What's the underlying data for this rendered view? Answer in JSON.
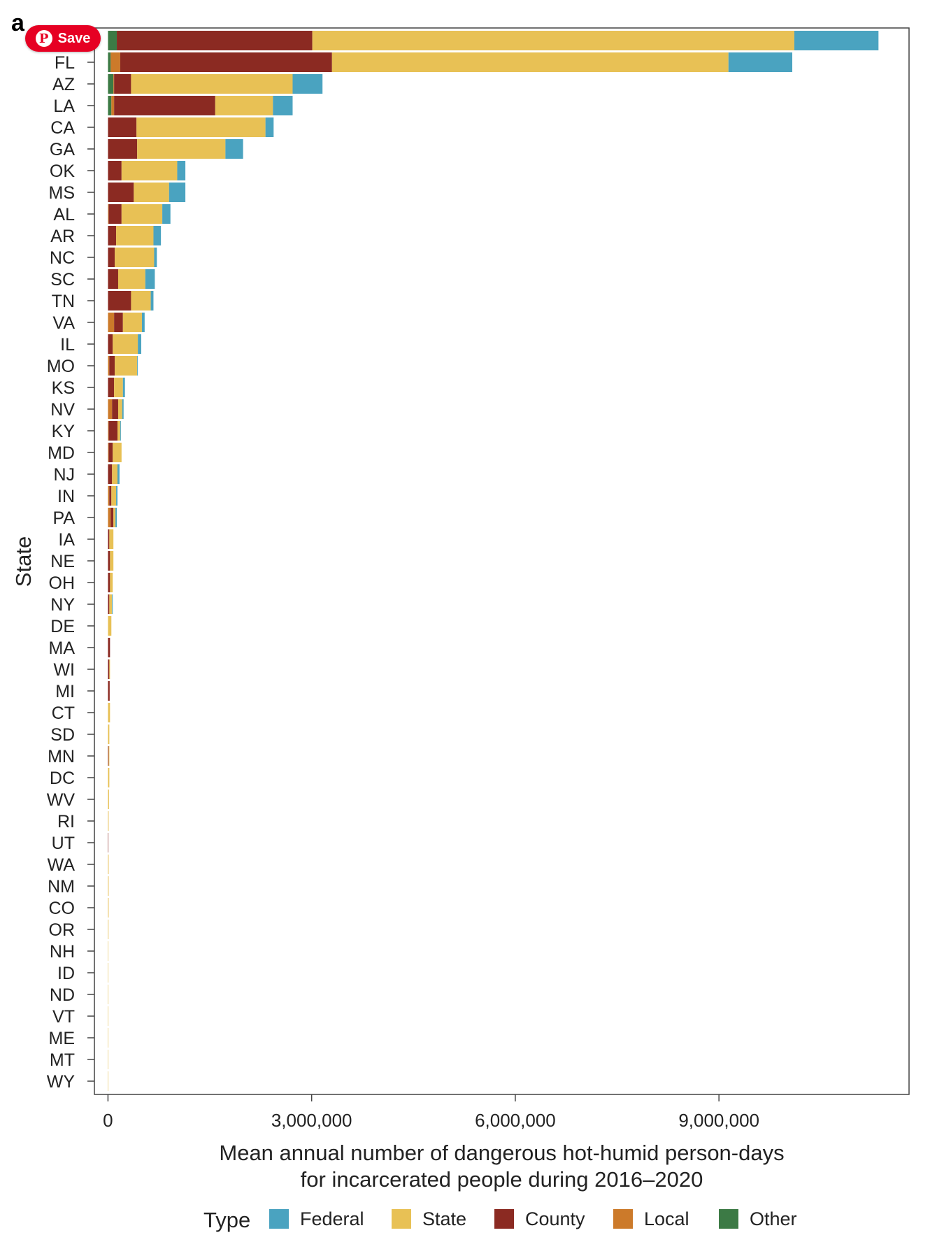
{
  "overlay": {
    "panel_letter": "a",
    "save_button_label": "Save",
    "pin_icon": "pinterest-icon"
  },
  "legend": {
    "title": "Type",
    "items": [
      {
        "label": "Federal",
        "color": "#4aa3c0"
      },
      {
        "label": "State",
        "color": "#e8c155"
      },
      {
        "label": "County",
        "color": "#8b2a22"
      },
      {
        "label": "Local",
        "color": "#cc7a2a"
      },
      {
        "label": "Other",
        "color": "#3c7a45"
      }
    ]
  },
  "chart_data": {
    "type": "bar",
    "orientation": "horizontal",
    "stacked": true,
    "ylabel": "State",
    "xlabel_lines": [
      "Mean annual number of dangerous hot-humid person-days",
      "for incarcerated people during 2016–2020"
    ],
    "xlim": [
      -200000,
      11800000
    ],
    "xticks": [
      0,
      3000000,
      6000000,
      9000000
    ],
    "xtick_labels": [
      "0",
      "3,000,000",
      "6,000,000",
      "9,000,000"
    ],
    "grid": false,
    "legend_position": "bottom",
    "stack_order": [
      "Other",
      "Local",
      "County",
      "State",
      "Federal"
    ],
    "categories": [
      "",
      "FL",
      "AZ",
      "LA",
      "CA",
      "GA",
      "OK",
      "MS",
      "AL",
      "AR",
      "NC",
      "SC",
      "TN",
      "VA",
      "IL",
      "MO",
      "KS",
      "NV",
      "KY",
      "MD",
      "NJ",
      "IN",
      "PA",
      "IA",
      "NE",
      "OH",
      "NY",
      "DE",
      "MA",
      "WI",
      "MI",
      "CT",
      "SD",
      "MN",
      "DC",
      "WV",
      "RI",
      "UT",
      "WA",
      "NM",
      "CO",
      "OR",
      "NH",
      "ID",
      "ND",
      "VT",
      "ME",
      "MT",
      "WY"
    ],
    "series": [
      {
        "name": "Other",
        "values": [
          130000,
          40000,
          80000,
          50000,
          0,
          0,
          0,
          0,
          0,
          0,
          0,
          0,
          0,
          0,
          0,
          0,
          0,
          0,
          0,
          0,
          0,
          0,
          0,
          0,
          0,
          0,
          0,
          0,
          0,
          0,
          0,
          0,
          0,
          0,
          0,
          0,
          0,
          0,
          0,
          0,
          0,
          0,
          0,
          0,
          0,
          0,
          0,
          0,
          0
        ]
      },
      {
        "name": "Local",
        "values": [
          0,
          140000,
          10000,
          40000,
          0,
          0,
          0,
          0,
          10000,
          0,
          0,
          0,
          0,
          90000,
          0,
          20000,
          0,
          60000,
          10000,
          10000,
          0,
          20000,
          40000,
          0,
          0,
          0,
          0,
          0,
          0,
          0,
          0,
          0,
          0,
          0,
          0,
          0,
          0,
          0,
          0,
          0,
          0,
          0,
          0,
          0,
          0,
          0,
          0,
          0,
          0
        ]
      },
      {
        "name": "County",
        "values": [
          2880000,
          3120000,
          250000,
          1490000,
          420000,
          430000,
          200000,
          380000,
          190000,
          120000,
          100000,
          150000,
          340000,
          130000,
          70000,
          80000,
          90000,
          90000,
          130000,
          60000,
          60000,
          30000,
          40000,
          20000,
          30000,
          30000,
          20000,
          0,
          30000,
          20000,
          25000,
          0,
          0,
          10000,
          0,
          0,
          0,
          5000,
          0,
          0,
          0,
          0,
          0,
          0,
          0,
          0,
          0,
          0,
          0
        ]
      },
      {
        "name": "State",
        "values": [
          7100000,
          5840000,
          2380000,
          850000,
          1900000,
          1300000,
          820000,
          520000,
          600000,
          550000,
          580000,
          400000,
          290000,
          280000,
          370000,
          330000,
          130000,
          60000,
          40000,
          130000,
          80000,
          70000,
          30000,
          60000,
          50000,
          40000,
          40000,
          50000,
          0,
          10000,
          0,
          30000,
          20000,
          10000,
          20000,
          15000,
          10000,
          0,
          10000,
          10000,
          10000,
          8000,
          5000,
          5000,
          4000,
          3000,
          3000,
          2000,
          2000
        ]
      },
      {
        "name": "Federal",
        "values": [
          1240000,
          940000,
          440000,
          290000,
          120000,
          260000,
          120000,
          240000,
          120000,
          110000,
          40000,
          140000,
          40000,
          40000,
          50000,
          10000,
          30000,
          20000,
          10000,
          0,
          30000,
          20000,
          20000,
          0,
          0,
          0,
          10000,
          0,
          0,
          0,
          0,
          0,
          0,
          0,
          0,
          0,
          0,
          0,
          0,
          0,
          0,
          0,
          0,
          0,
          0,
          0,
          0,
          0,
          0
        ]
      }
    ]
  }
}
